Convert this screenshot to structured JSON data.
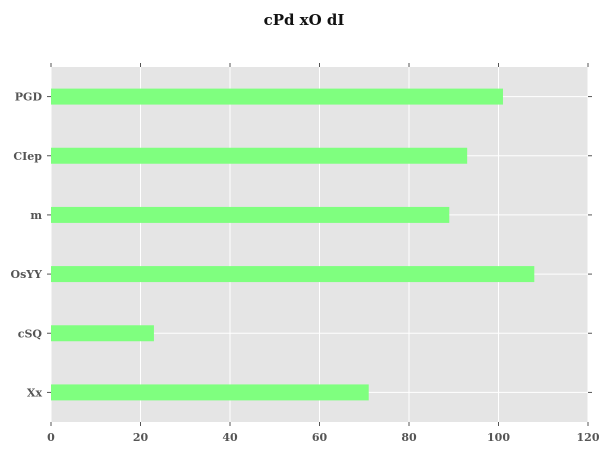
{
  "chart_data": {
    "type": "bar",
    "orientation": "horizontal",
    "title": "cPd xO dI",
    "xlabel": "",
    "ylabel": "",
    "categories": [
      "Xx",
      "cSQ",
      "OsYY",
      "m",
      "CIep",
      "PGD"
    ],
    "values": [
      71,
      23,
      108,
      89,
      93,
      101
    ],
    "xlim": [
      0,
      120
    ],
    "xticks": [
      0,
      20,
      40,
      60,
      80,
      100,
      120
    ],
    "grid": true,
    "legend": "none",
    "colors": {
      "bar": "#7fff7f",
      "plot_background": "#e5e5e5",
      "grid": "#ffffff",
      "tick_label": "#555555",
      "title": "#111111"
    }
  }
}
